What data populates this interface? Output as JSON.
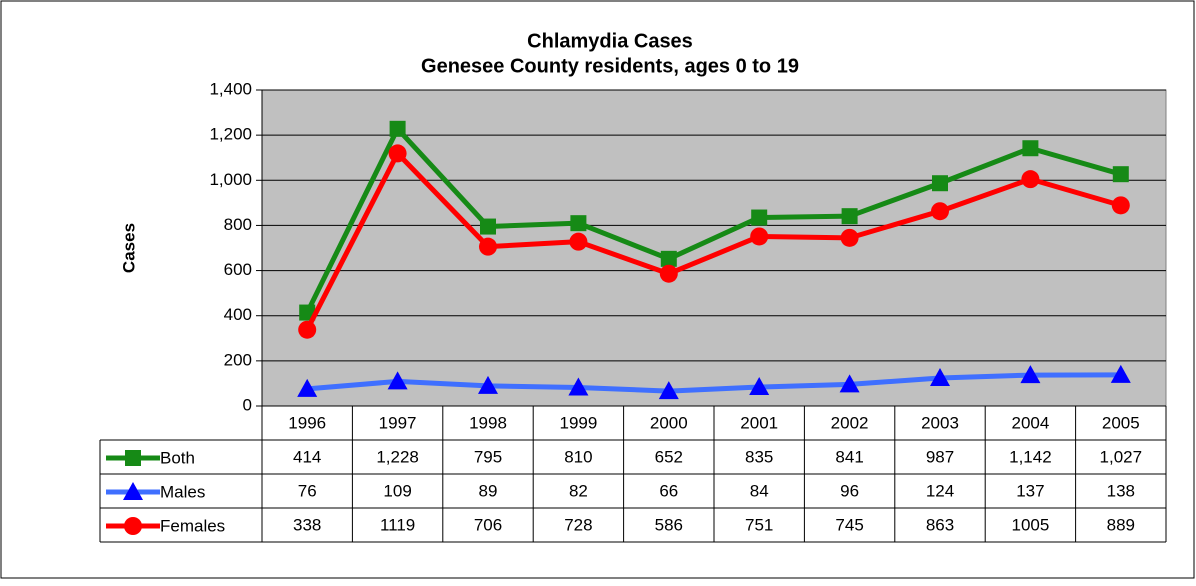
{
  "chart_data": {
    "type": "line",
    "title": "Chlamydia Cases",
    "subtitle": "Genesee County residents, ages 0 to 19",
    "y_label": "Cases",
    "categories": [
      "1996",
      "1997",
      "1998",
      "1999",
      "2000",
      "2001",
      "2002",
      "2003",
      "2004",
      "2005"
    ],
    "series": [
      {
        "name": "Both",
        "color": "#168a16",
        "marker": "square",
        "values": [
          414,
          1228,
          795,
          810,
          652,
          835,
          841,
          987,
          1142,
          1027
        ],
        "value_labels": [
          "414",
          "1,228",
          "795",
          "810",
          "652",
          "835",
          "841",
          "987",
          "1,142",
          "1,027"
        ]
      },
      {
        "name": "Males",
        "color": "#3f6fff",
        "marker": "triangle",
        "values": [
          76,
          109,
          89,
          82,
          66,
          84,
          96,
          124,
          137,
          138
        ]
      },
      {
        "name": "Females",
        "color": "#ff0000",
        "marker": "circle",
        "values": [
          338,
          1119,
          706,
          728,
          586,
          751,
          745,
          863,
          1005,
          889
        ]
      }
    ],
    "ylim": [
      0,
      1400
    ],
    "yticks": [
      0,
      200,
      400,
      600,
      800,
      {
        "value": 1000,
        "label": "1,000"
      },
      {
        "value": 1200,
        "label": "1,200"
      },
      {
        "value": 1400,
        "label": "1,400"
      }
    ],
    "grid": true,
    "plot_background": "#c0c0c0",
    "data_table": true
  }
}
